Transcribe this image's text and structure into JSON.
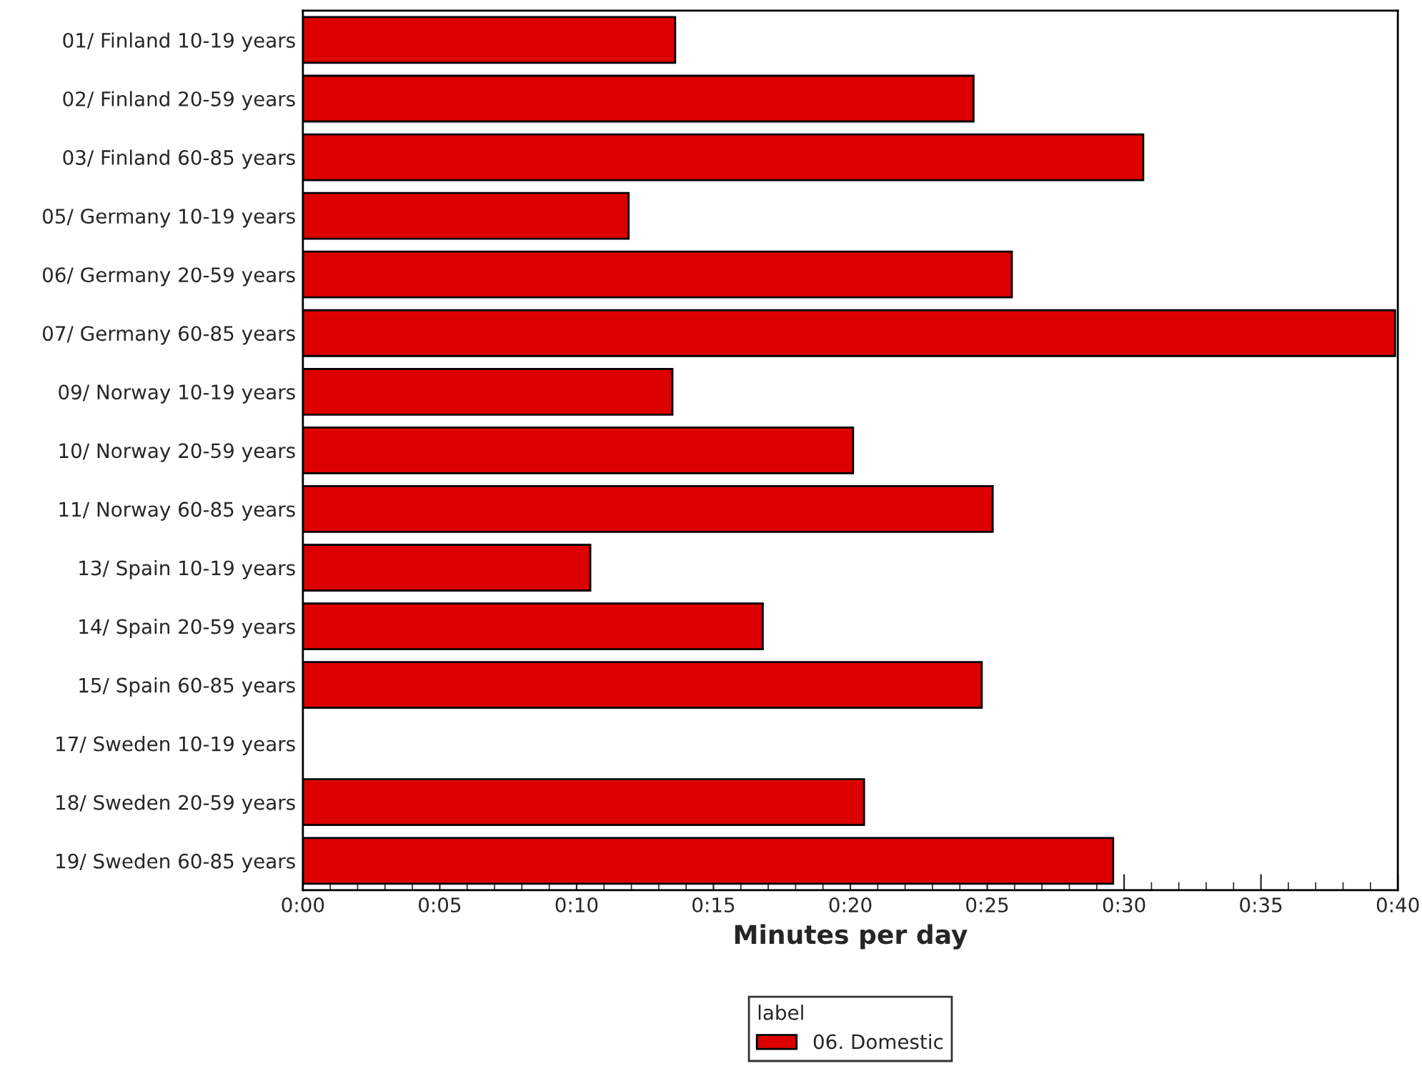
{
  "chart_data": {
    "type": "bar",
    "orientation": "horizontal",
    "xlabel": "Minutes per day",
    "legend_title": "label",
    "legend": "bottom",
    "categories": [
      "01/ Finland 10-19 years",
      "02/ Finland 20-59 years",
      "03/ Finland 60-85 years",
      "05/ Germany 10-19 years",
      "06/ Germany 20-59 years",
      "07/ Germany 60-85 years",
      "09/ Norway 10-19 years",
      "10/ Norway 20-59 years",
      "11/ Norway 60-85 years",
      "13/ Spain 10-19 years",
      "14/ Spain 20-59 years",
      "15/ Spain 60-85 years",
      "17/ Sweden 10-19 years",
      "18/ Sweden 20-59 years",
      "19/ Sweden 60-85 years"
    ],
    "series": [
      {
        "name": "06. Domestic",
        "color": "#dd0000",
        "values": [
          13.6,
          24.5,
          30.7,
          11.9,
          25.9,
          39.9,
          13.5,
          20.1,
          25.2,
          10.5,
          16.8,
          24.8,
          null,
          20.5,
          29.6
        ]
      }
    ],
    "xlim": [
      0,
      40
    ],
    "xticks": [
      {
        "value": 0,
        "label": "0:00"
      },
      {
        "value": 5,
        "label": "0:05"
      },
      {
        "value": 10,
        "label": "0:10"
      },
      {
        "value": 15,
        "label": "0:15"
      },
      {
        "value": 20,
        "label": "0:20"
      },
      {
        "value": 25,
        "label": "0:25"
      },
      {
        "value": 30,
        "label": "0:30"
      },
      {
        "value": 35,
        "label": "0:35"
      },
      {
        "value": 40,
        "label": "0:40"
      }
    ],
    "grid": false
  }
}
